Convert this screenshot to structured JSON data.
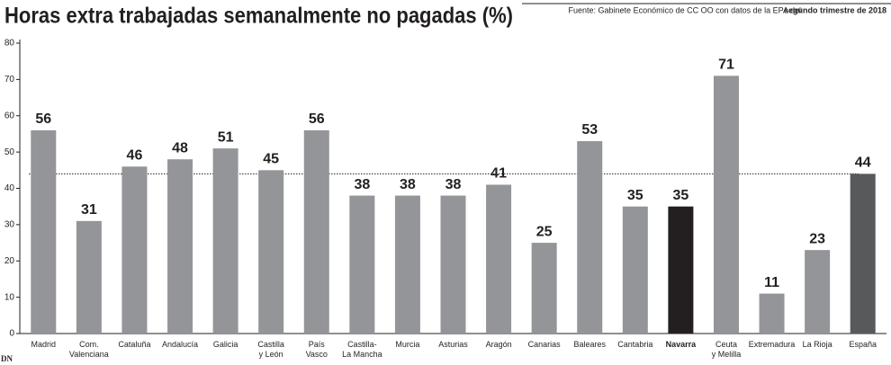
{
  "chart_data": {
    "type": "bar",
    "title": "Horas extra trabajadas semanalmente no pagadas (%)",
    "source": "Fuente: Gabinete Económico de CC OO con datos de la EPA del",
    "source_bold": "segundo trimestre de 2018",
    "logo": "DN",
    "categories": [
      "Madrid",
      "Com.\nValenciana",
      "Cataluña",
      "Andalucía",
      "Galicia",
      "Castilla\ny León",
      "País\nVasco",
      "Castilla-\nLa Mancha",
      "Murcia",
      "Asturias",
      "Aragón",
      "Canarias",
      "Baleares",
      "Cantabria",
      "Navarra",
      "Ceuta\ny Melilla",
      "Extremadura",
      "La Rioja",
      "España"
    ],
    "values": [
      56,
      31,
      46,
      48,
      51,
      45,
      56,
      38,
      38,
      38,
      41,
      25,
      53,
      35,
      35,
      71,
      11,
      23,
      44
    ],
    "colors": [
      "#939598",
      "#939598",
      "#939598",
      "#939598",
      "#939598",
      "#939598",
      "#939598",
      "#939598",
      "#939598",
      "#939598",
      "#939598",
      "#939598",
      "#939598",
      "#939598",
      "#231f20",
      "#939598",
      "#939598",
      "#939598",
      "#58595b"
    ],
    "ylim": [
      0,
      80
    ],
    "yticks": [
      0,
      10,
      20,
      30,
      40,
      50,
      60,
      70,
      80
    ]
  }
}
